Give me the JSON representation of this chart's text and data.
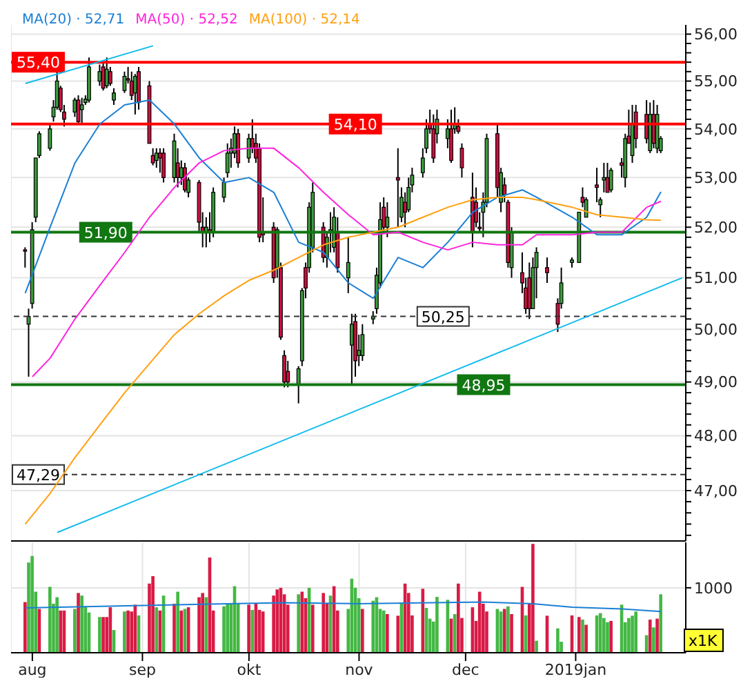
{
  "chart_data": [
    {
      "type": "candlestick",
      "log": true,
      "grid": true,
      "legend": "top left",
      "marker": "none",
      "tick_labels": "y",
      "xlim": [
        "2018-07-26",
        "2019-02-01"
      ],
      "xticks": [
        {
          "value": "2018-08-01",
          "label": null
        },
        {
          "value": "2018-09-01",
          "label": null
        },
        {
          "value": "2018-10-01",
          "label": null
        },
        {
          "value": "2018-11-01",
          "label": null
        },
        {
          "value": "2018-12-01",
          "label": null
        },
        {
          "value": "2019-01-01",
          "label": null
        }
      ],
      "ylim": [
        46.1,
        56.2
      ],
      "yticks": [
        {
          "value": 46.2,
          "label": null
        },
        {
          "value": 46.4,
          "label": null
        },
        {
          "value": 46.6,
          "label": null
        },
        {
          "value": 46.8,
          "label": null
        },
        {
          "value": 47,
          "label": "47,00"
        },
        {
          "value": 47.2,
          "label": null
        },
        {
          "value": 47.4,
          "label": null
        },
        {
          "value": 47.6,
          "label": null
        },
        {
          "value": 47.8,
          "label": null
        },
        {
          "value": 48,
          "label": "48,00"
        },
        {
          "value": 48.2,
          "label": null
        },
        {
          "value": 48.4,
          "label": null
        },
        {
          "value": 48.6,
          "label": null
        },
        {
          "value": 48.8,
          "label": null
        },
        {
          "value": 49,
          "label": "49,00"
        },
        {
          "value": 49.2,
          "label": null
        },
        {
          "value": 49.4,
          "label": null
        },
        {
          "value": 49.6,
          "label": null
        },
        {
          "value": 49.8,
          "label": null
        },
        {
          "value": 50,
          "label": "50,00"
        },
        {
          "value": 50.2,
          "label": null
        },
        {
          "value": 50.4,
          "label": null
        },
        {
          "value": 50.6,
          "label": null
        },
        {
          "value": 50.8,
          "label": null
        },
        {
          "value": 51,
          "label": "51,00"
        },
        {
          "value": 51.2,
          "label": null
        },
        {
          "value": 51.4,
          "label": null
        },
        {
          "value": 51.6,
          "label": null
        },
        {
          "value": 51.8,
          "label": null
        },
        {
          "value": 52,
          "label": "52,00"
        },
        {
          "value": 52.2,
          "label": null
        },
        {
          "value": 52.4,
          "label": null
        },
        {
          "value": 52.6,
          "label": null
        },
        {
          "value": 52.8,
          "label": null
        },
        {
          "value": 53,
          "label": "53,00"
        },
        {
          "value": 53.2,
          "label": null
        },
        {
          "value": 53.4,
          "label": null
        },
        {
          "value": 53.6,
          "label": null
        },
        {
          "value": 53.8,
          "label": null
        },
        {
          "value": 54,
          "label": "54,00"
        },
        {
          "value": 54.2,
          "label": null
        },
        {
          "value": 54.4,
          "label": null
        },
        {
          "value": 54.6,
          "label": null
        },
        {
          "value": 54.8,
          "label": null
        },
        {
          "value": 55,
          "label": "55,00"
        },
        {
          "value": 55.2,
          "label": null
        },
        {
          "value": 55.4,
          "label": null
        },
        {
          "value": 55.6,
          "label": null
        },
        {
          "value": 55.8,
          "label": null
        },
        {
          "value": 56,
          "label": "56,00"
        }
      ],
      "x": [
        "2018-07-30",
        "2018-07-31",
        "2018-08-01",
        "2018-08-02",
        "2018-08-03",
        "2018-08-06",
        "2018-08-07",
        "2018-08-08",
        "2018-08-09",
        "2018-08-10",
        "2018-08-13",
        "2018-08-14",
        "2018-08-15",
        "2018-08-16",
        "2018-08-17",
        "2018-08-20",
        "2018-08-21",
        "2018-08-22",
        "2018-08-23",
        "2018-08-24",
        "2018-08-27",
        "2018-08-28",
        "2018-08-29",
        "2018-08-30",
        "2018-08-31",
        "2018-09-03",
        "2018-09-04",
        "2018-09-05",
        "2018-09-06",
        "2018-09-07",
        "2018-09-10",
        "2018-09-11",
        "2018-09-12",
        "2018-09-13",
        "2018-09-14",
        "2018-09-17",
        "2018-09-18",
        "2018-09-19",
        "2018-09-20",
        "2018-09-21",
        "2018-09-24",
        "2018-09-25",
        "2018-09-26",
        "2018-09-27",
        "2018-09-28",
        "2018-10-01",
        "2018-10-02",
        "2018-10-03",
        "2018-10-04",
        "2018-10-05",
        "2018-10-08",
        "2018-10-09",
        "2018-10-10",
        "2018-10-11",
        "2018-10-12",
        "2018-10-15",
        "2018-10-16",
        "2018-10-17",
        "2018-10-18",
        "2018-10-19",
        "2018-10-22",
        "2018-10-23",
        "2018-10-24",
        "2018-10-25",
        "2018-10-26",
        "2018-10-29",
        "2018-10-30",
        "2018-10-31",
        "2018-11-01",
        "2018-11-02",
        "2018-11-05",
        "2018-11-06",
        "2018-11-07",
        "2018-11-08",
        "2018-11-09",
        "2018-11-12",
        "2018-11-13",
        "2018-11-14",
        "2018-11-15",
        "2018-11-16",
        "2018-11-19",
        "2018-11-20",
        "2018-11-21",
        "2018-11-22",
        "2018-11-23",
        "2018-11-26",
        "2018-11-27",
        "2018-11-28",
        "2018-11-29",
        "2018-11-30",
        "2018-12-03",
        "2018-12-04",
        "2018-12-05",
        "2018-12-06",
        "2018-12-07",
        "2018-12-10",
        "2018-12-11",
        "2018-12-12",
        "2018-12-13",
        "2018-12-14",
        "2018-12-17",
        "2018-12-18",
        "2018-12-19",
        "2018-12-20",
        "2018-12-21",
        "2018-12-24",
        "2018-12-27",
        "2018-12-28",
        "2018-12-31",
        "2019-01-02",
        "2019-01-03",
        "2019-01-04",
        "2019-01-07",
        "2019-01-08",
        "2019-01-09",
        "2019-01-10",
        "2019-01-11",
        "2019-01-14",
        "2019-01-15",
        "2019-01-16",
        "2019-01-17",
        "2019-01-18",
        "2019-01-21",
        "2019-01-22",
        "2019-01-23",
        "2019-01-24",
        "2019-01-25"
      ],
      "ohlc": [
        [
          51.55,
          51.6,
          51.2,
          51.55
        ],
        [
          50.1,
          50.4,
          49.1,
          50.25
        ],
        [
          50.5,
          52.1,
          50.4,
          51.95
        ],
        [
          52.2,
          53.4,
          52.1,
          53.4
        ],
        [
          53.45,
          53.95,
          53.4,
          53.9
        ],
        [
          53.6,
          54.1,
          53.55,
          54.0
        ],
        [
          54.25,
          54.6,
          54.15,
          54.45
        ],
        [
          54.45,
          55.2,
          54.4,
          55.0
        ],
        [
          54.85,
          54.9,
          54.35,
          54.4
        ],
        [
          54.35,
          54.5,
          54.05,
          54.2
        ],
        [
          54.35,
          54.65,
          54.25,
          54.6
        ],
        [
          54.6,
          54.7,
          54.1,
          54.15
        ],
        [
          54.4,
          54.65,
          54.1,
          54.5
        ],
        [
          54.55,
          54.7,
          54.5,
          54.62
        ],
        [
          54.6,
          55.5,
          54.55,
          55.3
        ],
        [
          55.0,
          55.35,
          54.9,
          55.2
        ],
        [
          55.3,
          55.4,
          54.8,
          54.85
        ],
        [
          54.9,
          55.5,
          54.85,
          55.25
        ],
        [
          55.2,
          55.3,
          54.9,
          54.95
        ],
        [
          54.6,
          54.85,
          54.5,
          54.75
        ],
        [
          54.8,
          55.2,
          54.75,
          55.1
        ],
        [
          55.05,
          55.3,
          54.95,
          55.05
        ],
        [
          55.0,
          55.2,
          54.6,
          54.7
        ],
        [
          54.75,
          55.15,
          54.3,
          55.1
        ],
        [
          55.2,
          55.3,
          54.4,
          54.55
        ],
        [
          54.9,
          55.0,
          53.7,
          53.7
        ],
        [
          53.45,
          53.6,
          53.25,
          53.3
        ],
        [
          53.35,
          53.6,
          53.2,
          53.5
        ],
        [
          53.5,
          53.6,
          53.1,
          53.4
        ],
        [
          53.5,
          53.6,
          52.9,
          53.0
        ],
        [
          53.0,
          53.9,
          52.9,
          53.75
        ],
        [
          53.3,
          53.6,
          52.8,
          53.0
        ],
        [
          53.0,
          53.35,
          52.85,
          53.2
        ],
        [
          53.2,
          53.3,
          52.7,
          52.75
        ],
        [
          52.7,
          53.0,
          52.6,
          52.95
        ],
        [
          52.9,
          52.95,
          51.9,
          52.1
        ],
        [
          52.0,
          52.3,
          51.6,
          51.9
        ],
        [
          51.9,
          52.2,
          51.6,
          52.0
        ],
        [
          51.95,
          52.3,
          51.7,
          51.9
        ],
        [
          51.9,
          52.8,
          51.8,
          52.7
        ],
        [
          52.6,
          53.0,
          52.5,
          52.9
        ],
        [
          53.1,
          53.7,
          53.0,
          53.5
        ],
        [
          53.5,
          53.8,
          53.2,
          53.6
        ],
        [
          53.5,
          54.05,
          53.4,
          53.9
        ],
        [
          53.9,
          54.0,
          53.2,
          53.3
        ],
        [
          53.4,
          53.9,
          53.3,
          53.8
        ],
        [
          53.8,
          54.2,
          53.5,
          53.6
        ],
        [
          53.7,
          53.9,
          53.3,
          53.4
        ],
        [
          53.6,
          53.7,
          51.7,
          51.8
        ],
        [
          51.9,
          52.6,
          51.7,
          51.85
        ],
        [
          52.0,
          52.1,
          50.9,
          51.0
        ],
        [
          51.2,
          52.0,
          51.0,
          51.95
        ],
        [
          51.2,
          51.3,
          49.8,
          49.85
        ],
        [
          49.5,
          49.6,
          48.9,
          49.0
        ],
        [
          49.2,
          49.4,
          48.9,
          49.0
        ],
        [
          48.95,
          49.3,
          48.6,
          49.25
        ],
        [
          49.4,
          50.8,
          49.3,
          50.75
        ],
        [
          51.2,
          51.3,
          50.6,
          50.8
        ],
        [
          51.2,
          52.5,
          51.1,
          52.4
        ],
        [
          51.6,
          52.9,
          51.5,
          52.7
        ],
        [
          52.0,
          52.1,
          51.3,
          51.4
        ],
        [
          51.4,
          51.9,
          51.2,
          51.8
        ],
        [
          51.9,
          52.3,
          51.5,
          51.95
        ],
        [
          51.6,
          52.4,
          51.5,
          52.2
        ],
        [
          51.9,
          52.2,
          51.1,
          51.2
        ],
        [
          51.0,
          51.8,
          50.7,
          51.3
        ],
        [
          49.7,
          50.3,
          48.95,
          50.1
        ],
        [
          50.15,
          50.3,
          49.1,
          49.4
        ],
        [
          49.5,
          49.9,
          49.3,
          49.6
        ],
        [
          49.5,
          50.1,
          49.4,
          49.9
        ],
        [
          50.2,
          50.35,
          50.1,
          50.25
        ],
        [
          50.4,
          51.2,
          50.3,
          51.05
        ],
        [
          50.9,
          52.5,
          50.8,
          52.15
        ],
        [
          52.4,
          52.6,
          51.9,
          52.0
        ],
        [
          52.0,
          52.5,
          51.8,
          52.2
        ],
        [
          53.0,
          53.6,
          52.0,
          52.95
        ],
        [
          52.2,
          52.8,
          52.1,
          52.6
        ],
        [
          52.5,
          52.7,
          52.0,
          52.3
        ],
        [
          52.35,
          53.0,
          52.3,
          52.8
        ],
        [
          52.85,
          53.2,
          52.7,
          53.05
        ],
        [
          53.1,
          53.6,
          53.0,
          53.4
        ],
        [
          53.6,
          54.2,
          53.5,
          54.0
        ],
        [
          54.1,
          54.4,
          53.9,
          54.0
        ],
        [
          54.0,
          54.3,
          53.3,
          53.4
        ],
        [
          53.9,
          54.4,
          53.7,
          54.2
        ],
        [
          53.8,
          54.2,
          53.6,
          54.0
        ],
        [
          54.0,
          54.4,
          53.3,
          53.35
        ],
        [
          54.0,
          54.45,
          53.9,
          54.1
        ],
        [
          54.05,
          54.2,
          53.9,
          53.95
        ],
        [
          53.6,
          53.7,
          53.0,
          53.2
        ],
        [
          52.6,
          53.1,
          51.6,
          51.9
        ],
        [
          52.5,
          52.8,
          52.0,
          52.1
        ],
        [
          52.0,
          52.3,
          51.9,
          52.0
        ],
        [
          52.3,
          52.7,
          51.8,
          52.5
        ],
        [
          52.5,
          53.9,
          52.4,
          53.8
        ],
        [
          53.9,
          54.1,
          52.6,
          52.8
        ],
        [
          52.5,
          53.2,
          52.3,
          53.1
        ],
        [
          52.85,
          53.0,
          52.5,
          52.65
        ],
        [
          52.5,
          52.55,
          51.2,
          51.3
        ],
        [
          51.2,
          52.0,
          51.0,
          51.9
        ],
        [
          51.1,
          51.5,
          50.7,
          50.9
        ],
        [
          50.8,
          51.0,
          50.3,
          50.4
        ],
        [
          51.0,
          51.3,
          50.2,
          50.4
        ],
        [
          50.4,
          51.4,
          50.4,
          51.2
        ],
        [
          51.2,
          51.6,
          50.6,
          51.5
        ],
        [
          51.2,
          51.4,
          50.9,
          51.1
        ],
        [
          50.5,
          50.6,
          49.95,
          50.1
        ],
        [
          50.5,
          51.2,
          50.4,
          50.9
        ],
        [
          51.3,
          51.4,
          51.2,
          51.35
        ],
        [
          51.3,
          52.3,
          51.3,
          52.3
        ],
        [
          52.6,
          52.8,
          52.4,
          52.5
        ],
        [
          52.2,
          52.6,
          52.2,
          52.55
        ],
        [
          52.85,
          53.2,
          52.5,
          52.8
        ],
        [
          52.45,
          52.6,
          52.2,
          52.55
        ],
        [
          52.95,
          53.3,
          52.7,
          53.0
        ],
        [
          53.0,
          53.3,
          52.7,
          52.7
        ],
        [
          52.75,
          53.2,
          52.7,
          53.15
        ],
        [
          53.3,
          53.4,
          53.0,
          53.25
        ],
        [
          53.0,
          53.9,
          52.8,
          53.8
        ],
        [
          53.85,
          54.4,
          53.7,
          53.7
        ],
        [
          53.45,
          54.5,
          53.3,
          54.1
        ],
        [
          54.35,
          54.5,
          53.6,
          53.8
        ],
        [
          54.3,
          54.6,
          53.7,
          53.8
        ],
        [
          53.55,
          54.55,
          53.5,
          54.3
        ],
        [
          54.3,
          54.6,
          53.6,
          53.7
        ],
        [
          53.6,
          54.5,
          53.5,
          54.3
        ],
        [
          53.55,
          53.85,
          53.5,
          53.8
        ]
      ],
      "colors": [
        "#cc1040",
        "#3a9c3a",
        "#3a9c3a",
        "#3a9c3a",
        "#3a9c3a",
        "#3a9c3a",
        "#3a9c3a",
        "#3a9c3a",
        "#cc1040",
        "#cc1040",
        "#3a9c3a",
        "#cc1040",
        "#3a9c3a",
        "#3a9c3a",
        "#3a9c3a",
        "#3a9c3a",
        "#cc1040",
        "#3a9c3a",
        "#cc1040",
        "#3a9c3a",
        "#3a9c3a",
        "#cc1040",
        "#cc1040",
        "#3a9c3a",
        "#cc1040",
        "#cc1040",
        "#cc1040",
        "#3a9c3a",
        "#cc1040",
        "#cc1040",
        "#3a9c3a",
        "#cc1040",
        "#3a9c3a",
        "#cc1040",
        "#3a9c3a",
        "#cc1040",
        "#cc1040",
        "#3a9c3a",
        "#cc1040",
        "#3a9c3a",
        "#3a9c3a",
        "#3a9c3a",
        "#3a9c3a",
        "#3a9c3a",
        "#cc1040",
        "#3a9c3a",
        "#cc1040",
        "#cc1040",
        "#cc1040",
        "#cc1040",
        "#cc1040",
        "#3a9c3a",
        "#cc1040",
        "#cc1040",
        "#cc1040",
        "#3a9c3a",
        "#3a9c3a",
        "#cc1040",
        "#3a9c3a",
        "#3a9c3a",
        "#cc1040",
        "#3a9c3a",
        "#3a9c3a",
        "#3a9c3a",
        "#cc1040",
        "#3a9c3a",
        "#3a9c3a",
        "#cc1040",
        "#3a9c3a",
        "#3a9c3a",
        "#3a9c3a",
        "#3a9c3a",
        "#3a9c3a",
        "#cc1040",
        "#3a9c3a",
        "#cc1040",
        "#3a9c3a",
        "#cc1040",
        "#3a9c3a",
        "#3a9c3a",
        "#3a9c3a",
        "#3a9c3a",
        "#cc1040",
        "#cc1040",
        "#3a9c3a",
        "#3a9c3a",
        "#cc1040",
        "#3a9c3a",
        "#cc1040",
        "#cc1040",
        "#cc1040",
        "#cc1040",
        "#cc1040",
        "#3a9c3a",
        "#3a9c3a",
        "#cc1040",
        "#3a9c3a",
        "#cc1040",
        "#cc1040",
        "#3a9c3a",
        "#cc1040",
        "#cc1040",
        "#cc1040",
        "#3a9c3a",
        "#3a9c3a",
        "#cc1040",
        "#cc1040",
        "#3a9c3a",
        "#3a9c3a",
        "#3a9c3a",
        "#cc1040",
        "#3a9c3a",
        "#cc1040",
        "#3a9c3a",
        "#3a9c3a",
        "#cc1040",
        "#3a9c3a",
        "#cc1040",
        "#3a9c3a",
        "#cc1040",
        "#3a9c3a",
        "#cc1040",
        "#cc1040",
        "#3a9c3a",
        "#cc1040",
        "#3a9c3a",
        "#3a9c3a"
      ],
      "series": [
        {
          "name": "MA(20) · 52,71",
          "color": "#1a7fd4",
          "type": "line",
          "x": [
            "2018-07-30",
            "2018-08-06",
            "2018-08-13",
            "2018-08-20",
            "2018-08-27",
            "2018-09-03",
            "2018-09-10",
            "2018-09-17",
            "2018-09-24",
            "2018-10-01",
            "2018-10-08",
            "2018-10-15",
            "2018-10-22",
            "2018-10-29",
            "2018-11-05",
            "2018-11-12",
            "2018-11-19",
            "2018-11-26",
            "2018-12-03",
            "2018-12-10",
            "2018-12-17",
            "2018-12-21",
            "2018-12-31",
            "2019-01-07",
            "2019-01-14",
            "2019-01-21",
            "2019-01-25"
          ],
          "values": [
            50.7,
            52.0,
            53.3,
            54.1,
            54.5,
            54.6,
            54.1,
            53.4,
            52.9,
            53.0,
            52.7,
            51.7,
            51.5,
            50.9,
            50.6,
            51.4,
            51.2,
            51.7,
            52.3,
            52.6,
            52.75,
            52.6,
            52.2,
            51.85,
            51.85,
            52.2,
            52.71
          ]
        },
        {
          "name": "MA(50) · 52,52",
          "color": "#ff22dd",
          "type": "line",
          "x": [
            "2018-08-01",
            "2018-08-06",
            "2018-08-13",
            "2018-08-20",
            "2018-08-27",
            "2018-09-03",
            "2018-09-10",
            "2018-09-17",
            "2018-09-24",
            "2018-10-01",
            "2018-10-08",
            "2018-10-15",
            "2018-10-22",
            "2018-10-29",
            "2018-11-05",
            "2018-11-12",
            "2018-11-19",
            "2018-11-26",
            "2018-12-03",
            "2018-12-10",
            "2018-12-17",
            "2018-12-21",
            "2018-12-31",
            "2019-01-07",
            "2019-01-14",
            "2019-01-21",
            "2019-01-25"
          ],
          "values": [
            49.1,
            49.45,
            50.2,
            50.85,
            51.5,
            52.2,
            52.8,
            53.3,
            53.55,
            53.6,
            53.6,
            53.2,
            52.7,
            52.25,
            51.85,
            51.9,
            51.7,
            51.55,
            51.7,
            51.65,
            51.65,
            51.85,
            51.85,
            51.9,
            51.9,
            52.4,
            52.52
          ]
        },
        {
          "name": "MA(100) · 52,14",
          "color": "#ffa010",
          "type": "line",
          "x": [
            "2018-07-30",
            "2018-08-06",
            "2018-08-13",
            "2018-08-20",
            "2018-08-27",
            "2018-09-03",
            "2018-09-10",
            "2018-09-17",
            "2018-09-24",
            "2018-10-01",
            "2018-10-08",
            "2018-10-15",
            "2018-10-22",
            "2018-10-29",
            "2018-11-05",
            "2018-11-12",
            "2018-11-19",
            "2018-11-26",
            "2018-12-03",
            "2018-12-10",
            "2018-12-17",
            "2018-12-21",
            "2018-12-31",
            "2019-01-07",
            "2019-01-14",
            "2019-01-21",
            "2019-01-25"
          ],
          "values": [
            46.4,
            46.95,
            47.6,
            48.2,
            48.8,
            49.35,
            49.9,
            50.3,
            50.65,
            50.95,
            51.15,
            51.4,
            51.65,
            51.8,
            51.9,
            52.0,
            52.2,
            52.4,
            52.55,
            52.6,
            52.6,
            52.55,
            52.4,
            52.25,
            52.2,
            52.15,
            52.14
          ]
        },
        {
          "color": "#10bbee",
          "type": "line",
          "x": [
            "2018-07-30",
            "2018-09-04"
          ],
          "values": [
            54.95,
            55.75
          ]
        },
        {
          "color": "#10bbee",
          "type": "line",
          "x": [
            "2018-08-08",
            "2019-01-31"
          ],
          "values": [
            46.25,
            51.0
          ]
        }
      ],
      "ref_lines": [
        {
          "axis": "y",
          "value": 55.4,
          "label": "55,40",
          "color": "#ff0000",
          "line_style": "solid"
        },
        {
          "axis": "y",
          "value": 54.1,
          "label": "54,10",
          "color": "#ff0000",
          "line_style": "solid"
        },
        {
          "axis": "y",
          "value": 51.9,
          "label": "51,90",
          "color": "#117711",
          "line_style": "solid"
        },
        {
          "axis": "y",
          "value": 48.95,
          "label": "48,95",
          "color": "#117711",
          "line_style": "solid"
        },
        {
          "axis": "y",
          "value": 50.25,
          "label": "50,25",
          "color": "#333333",
          "line_style": "dashed"
        },
        {
          "axis": "y",
          "value": 47.29,
          "label": "47,29",
          "color": "#333333",
          "line_style": "dashed"
        }
      ]
    },
    {
      "type": "bar",
      "grid": true,
      "ylabel": "x1K",
      "xlim": [
        "2018-07-26",
        "2019-02-01"
      ],
      "xticks": [
        {
          "value": "2018-08-01",
          "label": "aug"
        },
        {
          "value": "2018-09-01",
          "label": "sep"
        },
        {
          "value": "2018-10-01",
          "label": "okt"
        },
        {
          "value": "2018-11-01",
          "label": "nov"
        },
        {
          "value": "2018-12-01",
          "label": "dec"
        },
        {
          "value": "2019-01-01",
          "label": "2019jan"
        }
      ],
      "ylim": [
        0,
        1700
      ],
      "yticks": [
        1000
      ],
      "x": [
        "2018-07-30",
        "2018-07-31",
        "2018-08-01",
        "2018-08-02",
        "2018-08-03",
        "2018-08-06",
        "2018-08-07",
        "2018-08-08",
        "2018-08-09",
        "2018-08-10",
        "2018-08-13",
        "2018-08-14",
        "2018-08-15",
        "2018-08-16",
        "2018-08-17",
        "2018-08-20",
        "2018-08-21",
        "2018-08-22",
        "2018-08-23",
        "2018-08-24",
        "2018-08-27",
        "2018-08-28",
        "2018-08-29",
        "2018-08-30",
        "2018-08-31",
        "2018-09-03",
        "2018-09-04",
        "2018-09-05",
        "2018-09-06",
        "2018-09-07",
        "2018-09-10",
        "2018-09-11",
        "2018-09-12",
        "2018-09-13",
        "2018-09-14",
        "2018-09-17",
        "2018-09-18",
        "2018-09-19",
        "2018-09-20",
        "2018-09-21",
        "2018-09-24",
        "2018-09-25",
        "2018-09-26",
        "2018-09-27",
        "2018-09-28",
        "2018-10-01",
        "2018-10-02",
        "2018-10-03",
        "2018-10-04",
        "2018-10-05",
        "2018-10-08",
        "2018-10-09",
        "2018-10-10",
        "2018-10-11",
        "2018-10-12",
        "2018-10-15",
        "2018-10-16",
        "2018-10-17",
        "2018-10-18",
        "2018-10-19",
        "2018-10-22",
        "2018-10-23",
        "2018-10-24",
        "2018-10-25",
        "2018-10-26",
        "2018-10-29",
        "2018-10-30",
        "2018-10-31",
        "2018-11-01",
        "2018-11-02",
        "2018-11-05",
        "2018-11-06",
        "2018-11-07",
        "2018-11-08",
        "2018-11-09",
        "2018-11-12",
        "2018-11-13",
        "2018-11-14",
        "2018-11-15",
        "2018-11-16",
        "2018-11-19",
        "2018-11-20",
        "2018-11-21",
        "2018-11-22",
        "2018-11-23",
        "2018-11-26",
        "2018-11-27",
        "2018-11-28",
        "2018-11-29",
        "2018-11-30",
        "2018-12-03",
        "2018-12-04",
        "2018-12-05",
        "2018-12-06",
        "2018-12-07",
        "2018-12-10",
        "2018-12-11",
        "2018-12-12",
        "2018-12-13",
        "2018-12-14",
        "2018-12-17",
        "2018-12-18",
        "2018-12-19",
        "2018-12-20",
        "2018-12-21",
        "2018-12-24",
        "2018-12-27",
        "2018-12-28",
        "2018-12-31",
        "2019-01-02",
        "2019-01-03",
        "2019-01-04",
        "2019-01-07",
        "2019-01-08",
        "2019-01-09",
        "2019-01-10",
        "2019-01-11",
        "2019-01-14",
        "2019-01-15",
        "2019-01-16",
        "2019-01-17",
        "2019-01-18",
        "2019-01-21",
        "2019-01-22",
        "2019-01-23",
        "2019-01-24",
        "2019-01-25"
      ],
      "series": [
        {
          "type": "bar",
          "values": [
            780,
            1390,
            1490,
            940,
            675,
            1015,
            755,
            855,
            650,
            650,
            675,
            920,
            880,
            715,
            620,
            550,
            550,
            550,
            700,
            350,
            635,
            650,
            635,
            740,
            575,
            1065,
            1180,
            700,
            650,
            880,
            755,
            940,
            650,
            675,
            700,
            855,
            920,
            855,
            1465,
            650,
            715,
            755,
            755,
            1025,
            755,
            740,
            660,
            755,
            660,
            635,
            880,
            975,
            1000,
            900,
            740,
            900,
            940,
            840,
            1000,
            740,
            920,
            755,
            880,
            1025,
            650,
            675,
            1140,
            1000,
            840,
            675,
            800,
            855,
            675,
            650,
            595,
            570,
            755,
            1065,
            920,
            575,
            985,
            690,
            525,
            480,
            860,
            815,
            525,
            595,
            1065,
            535,
            700,
            490,
            940,
            755,
            635,
            675,
            635,
            675,
            715,
            595,
            1015,
            575,
            755,
            1675,
            185,
            570,
            375,
            170,
            575,
            550,
            510,
            430,
            575,
            610,
            535,
            470,
            490,
            740,
            470,
            535,
            570,
            635,
            270,
            510,
            390,
            525,
            900
          ],
          "colors": [
            "#d81b45",
            "#44b844",
            "#44b844",
            "#44b844",
            "#d81b45",
            "#44b844",
            "#44b844",
            "#44b844",
            "#d81b45",
            "#d81b45",
            "#44b844",
            "#d81b45",
            "#44b844",
            "#44b844",
            "#44b844",
            "#44b844",
            "#d81b45",
            "#d81b45",
            "#d81b45",
            "#44b844",
            "#44b844",
            "#d81b45",
            "#d81b45",
            "#d81b45",
            "#44b844",
            "#d81b45",
            "#d81b45",
            "#44b844",
            "#d81b45",
            "#44b844",
            "#d81b45",
            "#44b844",
            "#d81b45",
            "#44b844",
            "#d81b45",
            "#d81b45",
            "#d81b45",
            "#44b844",
            "#d81b45",
            "#d81b45",
            "#44b844",
            "#44b844",
            "#44b844",
            "#44b844",
            "#44b844",
            "#d81b45",
            "#44b844",
            "#d81b45",
            "#d81b45",
            "#d81b45",
            "#d81b45",
            "#d81b45",
            "#d81b45",
            "#d81b45",
            "#d81b45",
            "#44b844",
            "#d81b45",
            "#d81b45",
            "#44b844",
            "#d81b45",
            "#d81b45",
            "#d81b45",
            "#44b844",
            "#d81b45",
            "#d81b45",
            "#44b844",
            "#44b844",
            "#44b844",
            "#44b844",
            "#d81b45",
            "#44b844",
            "#44b844",
            "#44b844",
            "#44b844",
            "#d81b45",
            "#d81b45",
            "#44b844",
            "#d81b45",
            "#d81b45",
            "#d81b45",
            "#d81b45",
            "#44b844",
            "#44b844",
            "#44b844",
            "#44b844",
            "#44b844",
            "#d81b45",
            "#44b844",
            "#d81b45",
            "#d81b45",
            "#d81b45",
            "#d81b45",
            "#d81b45",
            "#d81b45",
            "#d81b45",
            "#44b844",
            "#44b844",
            "#d81b45",
            "#44b844",
            "#d81b45",
            "#d81b45",
            "#44b844",
            "#d81b45",
            "#d81b45",
            "#44b844",
            "#d81b45",
            "#44b844",
            "#44b844",
            "#d81b45",
            "#d81b45",
            "#44b844",
            "#d81b45",
            "#44b844",
            "#44b844",
            "#44b844",
            "#44b844",
            "#d81b45",
            "#44b844",
            "#44b844",
            "#44b844",
            "#44b844",
            "#44b844",
            "#44b844",
            "#d81b45",
            "#44b844",
            "#d81b45",
            "#44b844"
          ]
        },
        {
          "type": "line",
          "color": "#1a7fd4",
          "x": [
            "2018-07-30",
            "2018-09-25",
            "2018-10-11",
            "2018-10-31",
            "2018-12-06",
            "2018-12-20",
            "2018-12-31",
            "2019-01-14",
            "2019-01-25"
          ],
          "values": [
            690,
            755,
            770,
            755,
            780,
            755,
            700,
            675,
            635
          ]
        }
      ]
    }
  ]
}
